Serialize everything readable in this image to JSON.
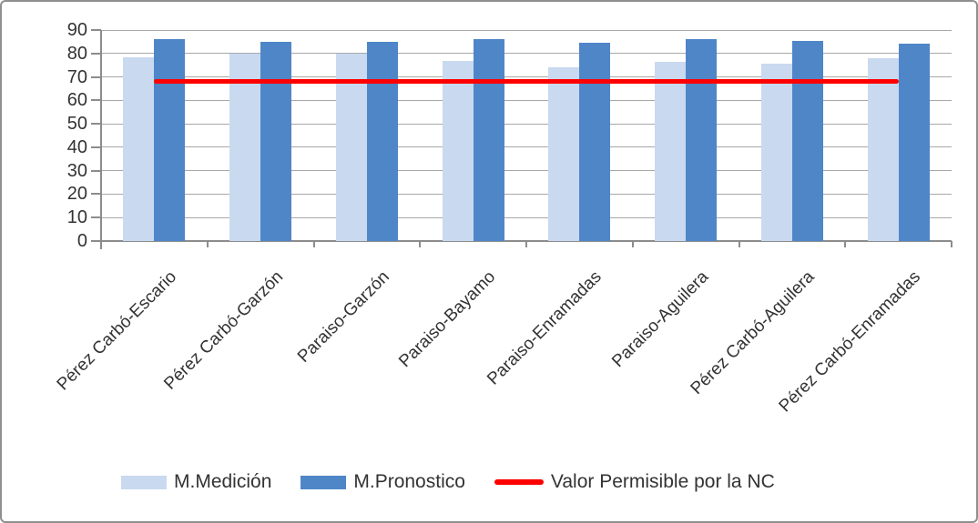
{
  "window": {
    "background": "#ffffff",
    "border_color": "#8f8f8f"
  },
  "colors": {
    "gridline": "#a8a8a8",
    "axis": "#8c8c8c",
    "text": "#333333",
    "series_medicion": "#c9d9f0",
    "series_pronostico": "#4f86c8",
    "reference_line": "#fe0000"
  },
  "chart_data": {
    "type": "bar",
    "title": "",
    "xlabel": "",
    "ylabel": "",
    "categories": [
      "Pérez Carbó-Escario",
      "Pérez Carbó-Garzón",
      "Paraiso-Garzón",
      "Paraiso-Bayamo",
      "Paraiso-Enramadas",
      "Paraiso-Aguilera",
      "Pérez Carbó-Aguilera",
      "Pérez Carbó-Enramadas"
    ],
    "series": [
      {
        "name": "M.Medición",
        "color": "#c9d9f0",
        "values": [
          78.5,
          80,
          80,
          77,
          74,
          76.5,
          75.5,
          78
        ]
      },
      {
        "name": "M.Pronostico",
        "color": "#4f86c8",
        "values": [
          86,
          85,
          85,
          86,
          84.5,
          86,
          85.5,
          84
        ]
      }
    ],
    "ref_line": {
      "name": "Valor Permisible por la NC",
      "color": "#fe0000",
      "value": 68
    },
    "ylim": [
      0,
      90
    ],
    "ytick_step": 10,
    "yticks": [
      "0",
      "10",
      "20",
      "30",
      "40",
      "50",
      "60",
      "70",
      "80",
      "90"
    ],
    "grid": true,
    "legend_position": "bottom"
  }
}
